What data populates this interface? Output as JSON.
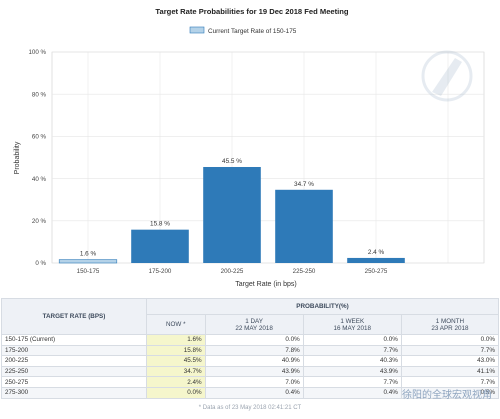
{
  "chart_data": {
    "type": "bar",
    "title": "Target Rate Probabilities for 19 Dec 2018 Fed Meeting",
    "legend": "Current Target Rate of 150-175",
    "xlabel": "Target Rate (in bps)",
    "ylabel": "Probability",
    "categories": [
      "150-175",
      "175-200",
      "200-225",
      "225-250",
      "250-275"
    ],
    "values": [
      1.6,
      15.8,
      45.5,
      34.7,
      2.4
    ],
    "labels": [
      "1.6 %",
      "15.8 %",
      "45.5 %",
      "34.7 %",
      "2.4 %"
    ],
    "yticks": [
      "0 %",
      "20 %",
      "40 %",
      "60 %",
      "80 %",
      "100 %"
    ],
    "ylim": [
      0,
      100
    ],
    "grid": true,
    "legend_position": "top",
    "colors": {
      "bar": "#2e7ab8",
      "current": "#b4d2e8",
      "grid": "#e6e6e6"
    }
  },
  "table": {
    "header_target": "TARGET RATE (BPS)",
    "header_prob": "PROBABILITY(%)",
    "cols": [
      {
        "name": "NOW *",
        "date": ""
      },
      {
        "name": "1 DAY",
        "date": "22 MAY 2018"
      },
      {
        "name": "1 WEEK",
        "date": "16 MAY 2018"
      },
      {
        "name": "1 MONTH",
        "date": "23 APR 2018"
      }
    ],
    "rows": [
      {
        "label": "150-175 (Current)",
        "vals": [
          "1.6%",
          "0.0%",
          "0.0%",
          "0.0%"
        ]
      },
      {
        "label": "175-200",
        "vals": [
          "15.8%",
          "7.8%",
          "7.7%",
          "7.7%"
        ]
      },
      {
        "label": "200-225",
        "vals": [
          "45.5%",
          "40.9%",
          "40.3%",
          "43.0%"
        ]
      },
      {
        "label": "225-250",
        "vals": [
          "34.7%",
          "43.9%",
          "43.9%",
          "41.1%"
        ]
      },
      {
        "label": "250-275",
        "vals": [
          "2.4%",
          "7.0%",
          "7.7%",
          "7.7%"
        ]
      },
      {
        "label": "275-300",
        "vals": [
          "0.0%",
          "0.4%",
          "0.4%",
          "0.5%"
        ]
      }
    ],
    "note": "* Data as of 23 May 2018 02:41:21 CT"
  },
  "watermark": "徐阳的全球宏观视角"
}
